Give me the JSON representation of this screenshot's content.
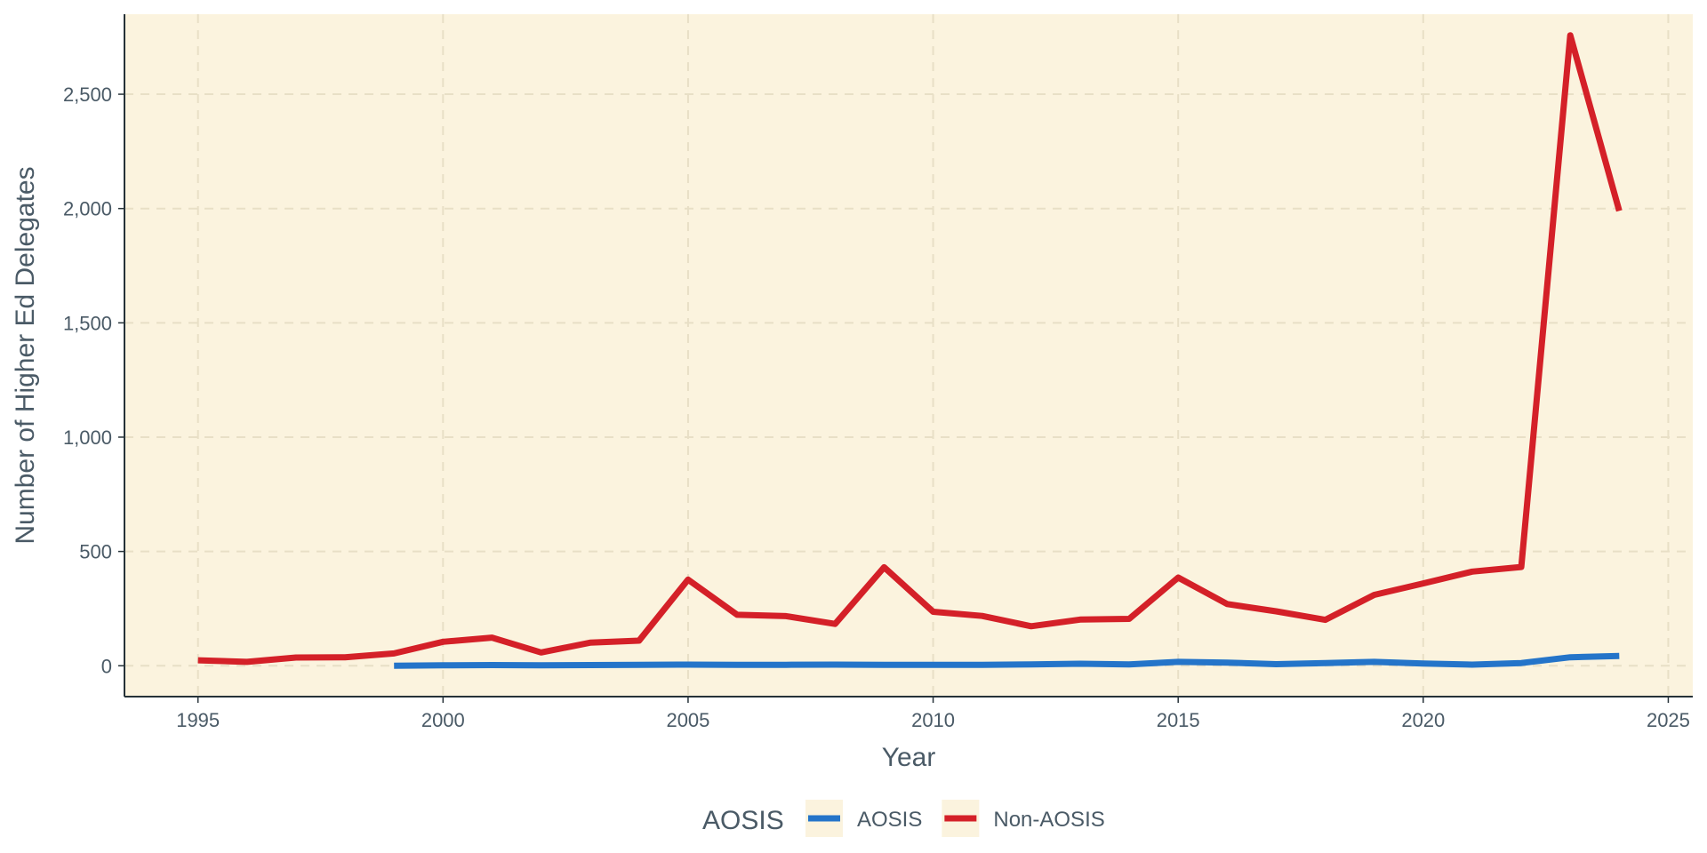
{
  "chart_data": {
    "type": "line",
    "xlabel": "Year",
    "ylabel": "Number of Higher Ed Delegates",
    "xlim": [
      1993.5,
      2025.5
    ],
    "ylim": [
      -135,
      2850
    ],
    "x_ticks": [
      1995,
      2000,
      2005,
      2010,
      2015,
      2020,
      2025
    ],
    "y_ticks": [
      0,
      500,
      1000,
      1500,
      2000,
      2500
    ],
    "y_tick_labels": [
      "0",
      "500",
      "1,000",
      "1,500",
      "2,000",
      "2,500"
    ],
    "grid": true,
    "legend": {
      "title": "AOSIS",
      "position": "bottom"
    },
    "series": [
      {
        "name": "AOSIS",
        "color": "#2474c9",
        "x": [
          1999,
          2000,
          2001,
          2002,
          2003,
          2004,
          2005,
          2006,
          2007,
          2008,
          2009,
          2010,
          2011,
          2012,
          2013,
          2014,
          2015,
          2016,
          2017,
          2018,
          2019,
          2020,
          2021,
          2022,
          2023,
          2024
        ],
        "values": [
          0,
          2,
          3,
          2,
          3,
          4,
          5,
          4,
          4,
          5,
          4,
          4,
          4,
          6,
          9,
          6,
          17,
          14,
          7,
          12,
          17,
          10,
          5,
          12,
          37,
          43
        ]
      },
      {
        "name": "Non-AOSIS",
        "color": "#d42028",
        "x": [
          1995,
          1996,
          1997,
          1998,
          1999,
          2000,
          2001,
          2002,
          2003,
          2004,
          2005,
          2006,
          2007,
          2008,
          2009,
          2010,
          2011,
          2012,
          2013,
          2014,
          2015,
          2016,
          2017,
          2018,
          2019,
          2020,
          2021,
          2022,
          2023,
          2024
        ],
        "values": [
          24,
          17,
          36,
          37,
          54,
          105,
          123,
          58,
          101,
          110,
          377,
          223,
          217,
          183,
          431,
          236,
          218,
          173,
          202,
          205,
          386,
          270,
          238,
          201,
          310,
          360,
          412,
          432,
          2758,
          1990
        ]
      }
    ]
  },
  "colors": {
    "panel_background": "#fbf3de",
    "grid": "#e8dfc6",
    "axis_line": "#263238",
    "text": "#4a5a66",
    "legend_key_background": "#fbf3de"
  }
}
